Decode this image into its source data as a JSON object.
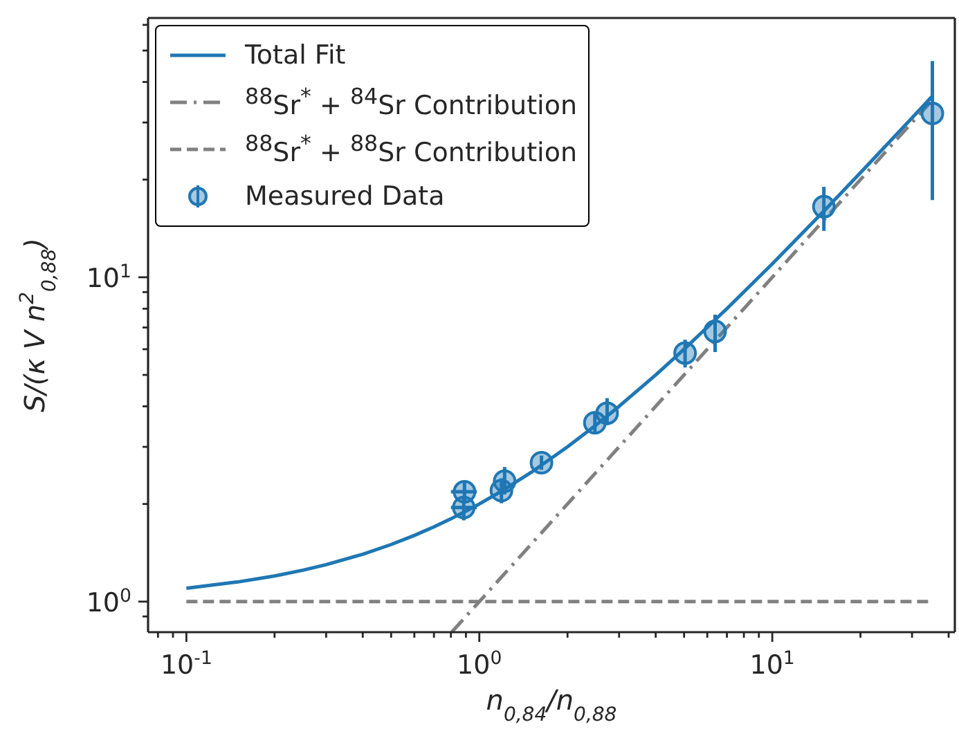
{
  "chart_data": {
    "type": "line",
    "xlabel": "n$_{0,84}$/n$_{0,88}$",
    "ylabel": "S/(κ V n$^{2}$$_{0,88}$)",
    "log": "xy",
    "grid": false,
    "legend": "top left",
    "xlim": [
      0.074,
      42
    ],
    "ylim": [
      0.805,
      63
    ],
    "xticks": [
      {
        "value": 0.08,
        "label": null
      },
      {
        "value": 0.09,
        "label": null
      },
      {
        "value": 0.1,
        "label": "10$^{-1}$"
      },
      {
        "value": 0.2,
        "label": null
      },
      {
        "value": 0.3,
        "label": null
      },
      {
        "value": 0.4,
        "label": null
      },
      {
        "value": 0.5,
        "label": null
      },
      {
        "value": 0.6,
        "label": null
      },
      {
        "value": 0.7,
        "label": null
      },
      {
        "value": 0.8,
        "label": null
      },
      {
        "value": 0.9,
        "label": null
      },
      {
        "value": 1,
        "label": "10$^{0}$"
      },
      {
        "value": 2,
        "label": null
      },
      {
        "value": 3,
        "label": null
      },
      {
        "value": 4,
        "label": null
      },
      {
        "value": 5,
        "label": null
      },
      {
        "value": 6,
        "label": null
      },
      {
        "value": 7,
        "label": null
      },
      {
        "value": 8,
        "label": null
      },
      {
        "value": 9,
        "label": null
      },
      {
        "value": 10,
        "label": "10$^{1}$"
      },
      {
        "value": 20,
        "label": null
      },
      {
        "value": 30,
        "label": null
      },
      {
        "value": 40,
        "label": null
      }
    ],
    "yticks": [
      {
        "value": 0.9,
        "label": null
      },
      {
        "value": 1,
        "label": "10$^{0}$"
      },
      {
        "value": 2,
        "label": null
      },
      {
        "value": 3,
        "label": null
      },
      {
        "value": 4,
        "label": null
      },
      {
        "value": 5,
        "label": null
      },
      {
        "value": 6,
        "label": null
      },
      {
        "value": 7,
        "label": null
      },
      {
        "value": 8,
        "label": null
      },
      {
        "value": 9,
        "label": null
      },
      {
        "value": 10,
        "label": "10$^{1}$"
      },
      {
        "value": 20,
        "label": null
      },
      {
        "value": 30,
        "label": null
      },
      {
        "value": 40,
        "label": null
      },
      {
        "value": 50,
        "label": null
      },
      {
        "value": 60,
        "label": null
      }
    ],
    "series": [
      {
        "name": "Total Fit",
        "color": "#1f77b4",
        "line_style": "solid",
        "marker": "none",
        "x": [
          0.1,
          0.15,
          0.2,
          0.25,
          0.3,
          0.4,
          0.5,
          0.6,
          0.7,
          0.8,
          0.9,
          1,
          1.2,
          1.5,
          2,
          2.5,
          3,
          4,
          5,
          7,
          10,
          15,
          20,
          30,
          35
        ],
        "values": [
          1.1,
          1.15,
          1.2,
          1.25,
          1.3,
          1.4,
          1.5,
          1.6,
          1.7,
          1.8,
          1.9,
          2,
          2.2,
          2.5,
          3,
          3.5,
          4,
          5,
          6,
          8,
          11,
          16,
          21,
          31,
          36
        ]
      },
      {
        "name": "$^{88}$Sr$^{*}$ + $^{84}$Sr Contribution",
        "color": "#808080",
        "line_style": "dashdot",
        "marker": "none",
        "x": [
          0.805,
          35
        ],
        "values": [
          0.805,
          35
        ]
      },
      {
        "name": "$^{88}$Sr$^{*}$ + $^{88}$Sr Contribution",
        "color": "#808080",
        "line_style": "dashed",
        "marker": "none",
        "x": [
          0.1,
          35
        ],
        "values": [
          1,
          1
        ]
      },
      {
        "name": "Measured Data",
        "type": "scatter",
        "color": "#1f77b4",
        "marker": "circle",
        "x": [
          0.89,
          0.885,
          1.22,
          1.19,
          1.63,
          2.48,
          2.73,
          5.04,
          6.38,
          15.0,
          35.2
        ],
        "values": [
          2.18,
          1.95,
          2.35,
          2.2,
          2.68,
          3.56,
          3.81,
          5.84,
          6.81,
          16.5,
          32
        ],
        "errors": [
          [
            2.02,
            2.36
          ],
          [
            1.78,
            2.12
          ],
          [
            2.14,
            2.6
          ],
          [
            2.01,
            2.4
          ],
          [
            2.55,
            2.82
          ],
          [
            3.32,
            3.82
          ],
          [
            3.5,
            4.24
          ],
          [
            5.27,
            6.42
          ],
          [
            5.88,
            7.67
          ],
          [
            13.9,
            19.0
          ],
          [
            17.3,
            46.4
          ]
        ],
        "xerrors": [
          [
            0.8,
            0.98
          ],
          [
            0.8,
            0.98
          ],
          null,
          null,
          null,
          null,
          null,
          null,
          null,
          null,
          null
        ]
      }
    ]
  }
}
